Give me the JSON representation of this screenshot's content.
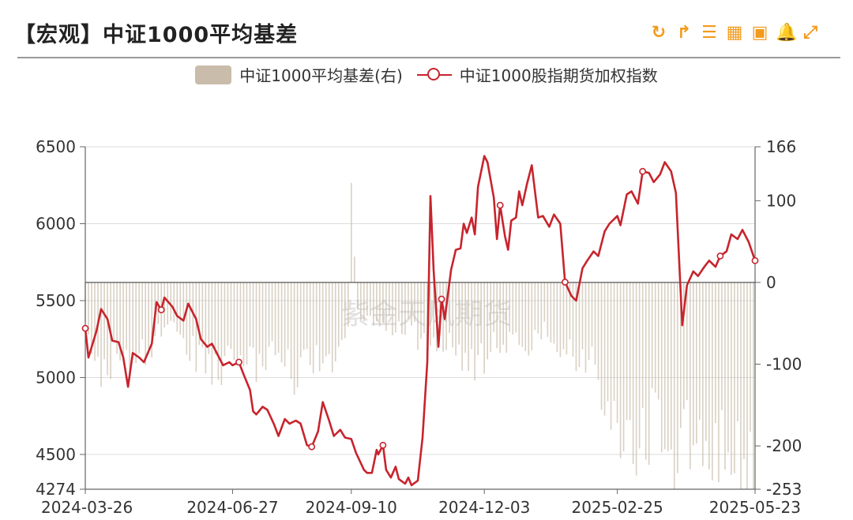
{
  "header": {
    "title": "【宏观】中证1000平均基差",
    "toolbar": [
      {
        "name": "refresh-icon",
        "glyph": "↻"
      },
      {
        "name": "share-icon",
        "glyph": "↱"
      },
      {
        "name": "list-icon",
        "glyph": "☰"
      },
      {
        "name": "table-icon",
        "glyph": "▦"
      },
      {
        "name": "image-icon",
        "glyph": "▣"
      },
      {
        "name": "bell-icon",
        "glyph": "🔔"
      },
      {
        "name": "fullscreen-icon",
        "glyph": "⤢"
      }
    ]
  },
  "watermark": "紫金天风期货",
  "colors": {
    "line": "#c7242d",
    "bar": "#c9bcaa",
    "accent": "#f29a1c"
  },
  "chart_data": {
    "type": "line+bar",
    "title": "【宏观】中证1000平均基差",
    "legend_position": "top-center",
    "grid": "horizontal",
    "x_range": [
      "2024-03-26",
      "2025-05-23"
    ],
    "x_ticks": [
      "2024-03-26",
      "2024-06-27",
      "2024-09-10",
      "2024-12-03",
      "2025-02-25",
      "2025-05-23"
    ],
    "y_left": {
      "ticks": [
        "6500",
        "6000",
        "5500",
        "5000",
        "4500",
        "4274"
      ],
      "range": [
        4274,
        6500
      ]
    },
    "y_right": {
      "ticks": [
        "166",
        "100",
        "0",
        "-100",
        "-200",
        "-253"
      ],
      "range": [
        -253,
        166
      ]
    },
    "series": [
      {
        "name": "中证1000平均基差(右)",
        "axis": "right",
        "kind": "bar",
        "anchors": [
          [
            "2024-03-26",
            -60
          ],
          [
            "2024-04-05",
            -135
          ],
          [
            "2024-04-15",
            -75
          ],
          [
            "2024-04-25",
            -120
          ],
          [
            "2024-05-05",
            -80
          ],
          [
            "2024-05-15",
            -60
          ],
          [
            "2024-05-25",
            -65
          ],
          [
            "2024-06-05",
            -95
          ],
          [
            "2024-06-15",
            -115
          ],
          [
            "2024-06-27",
            -90
          ],
          [
            "2024-07-10",
            -110
          ],
          [
            "2024-07-25",
            -80
          ],
          [
            "2024-08-05",
            -115
          ],
          [
            "2024-08-20",
            -90
          ],
          [
            "2024-09-01",
            -110
          ],
          [
            "2024-09-08",
            -50
          ],
          [
            "2024-09-10",
            166
          ],
          [
            "2024-09-13",
            -30
          ],
          [
            "2024-09-20",
            -55
          ],
          [
            "2024-10-01",
            -50
          ],
          [
            "2024-10-15",
            -60
          ],
          [
            "2024-10-28",
            -75
          ],
          [
            "2024-11-10",
            -70
          ],
          [
            "2024-11-20",
            -110
          ],
          [
            "2024-12-03",
            -95
          ],
          [
            "2024-12-15",
            -70
          ],
          [
            "2024-12-28",
            -80
          ],
          [
            "2025-01-10",
            -60
          ],
          [
            "2025-01-25",
            -85
          ],
          [
            "2025-02-10",
            -110
          ],
          [
            "2025-02-25",
            -170
          ],
          [
            "2025-03-10",
            -215
          ],
          [
            "2025-03-20",
            -175
          ],
          [
            "2025-04-01",
            -220
          ],
          [
            "2025-04-10",
            -185
          ],
          [
            "2025-04-20",
            -215
          ],
          [
            "2025-05-05",
            -195
          ],
          [
            "2025-05-15",
            -235
          ],
          [
            "2025-05-23",
            -240
          ]
        ]
      },
      {
        "name": "中证1000股指期货加权指数",
        "axis": "left",
        "kind": "line",
        "points": [
          [
            "2024-03-26",
            5320
          ],
          [
            "2024-03-28",
            5130
          ],
          [
            "2024-04-02",
            5300
          ],
          [
            "2024-04-05",
            5445
          ],
          [
            "2024-04-09",
            5380
          ],
          [
            "2024-04-12",
            5240
          ],
          [
            "2024-04-16",
            5230
          ],
          [
            "2024-04-19",
            5130
          ],
          [
            "2024-04-22",
            4940
          ],
          [
            "2024-04-25",
            5160
          ],
          [
            "2024-04-29",
            5130
          ],
          [
            "2024-05-02",
            5100
          ],
          [
            "2024-05-07",
            5220
          ],
          [
            "2024-05-10",
            5490
          ],
          [
            "2024-05-13",
            5440
          ],
          [
            "2024-05-15",
            5520
          ],
          [
            "2024-05-20",
            5460
          ],
          [
            "2024-05-23",
            5400
          ],
          [
            "2024-05-27",
            5370
          ],
          [
            "2024-05-30",
            5480
          ],
          [
            "2024-06-04",
            5380
          ],
          [
            "2024-06-07",
            5250
          ],
          [
            "2024-06-11",
            5200
          ],
          [
            "2024-06-14",
            5220
          ],
          [
            "2024-06-18",
            5140
          ],
          [
            "2024-06-21",
            5080
          ],
          [
            "2024-06-25",
            5100
          ],
          [
            "2024-06-27",
            5080
          ],
          [
            "2024-07-01",
            5100
          ],
          [
            "2024-07-04",
            5020
          ],
          [
            "2024-07-08",
            4920
          ],
          [
            "2024-07-10",
            4780
          ],
          [
            "2024-07-12",
            4760
          ],
          [
            "2024-07-16",
            4810
          ],
          [
            "2024-07-19",
            4790
          ],
          [
            "2024-07-23",
            4700
          ],
          [
            "2024-07-26",
            4620
          ],
          [
            "2024-07-30",
            4730
          ],
          [
            "2024-08-02",
            4700
          ],
          [
            "2024-08-06",
            4720
          ],
          [
            "2024-08-09",
            4700
          ],
          [
            "2024-08-13",
            4560
          ],
          [
            "2024-08-16",
            4550
          ],
          [
            "2024-08-20",
            4650
          ],
          [
            "2024-08-23",
            4840
          ],
          [
            "2024-08-27",
            4720
          ],
          [
            "2024-08-30",
            4620
          ],
          [
            "2024-09-03",
            4660
          ],
          [
            "2024-09-06",
            4610
          ],
          [
            "2024-09-10",
            4600
          ],
          [
            "2024-09-13",
            4510
          ],
          [
            "2024-09-18",
            4400
          ],
          [
            "2024-09-20",
            4380
          ],
          [
            "2024-09-23",
            4380
          ],
          [
            "2024-09-26",
            4530
          ],
          [
            "2024-09-27",
            4500
          ],
          [
            "2024-09-30",
            4560
          ],
          [
            "2024-10-02",
            4400
          ],
          [
            "2024-10-05",
            4350
          ],
          [
            "2024-10-08",
            4420
          ],
          [
            "2024-10-10",
            4340
          ],
          [
            "2024-10-14",
            4310
          ],
          [
            "2024-10-16",
            4350
          ],
          [
            "2024-10-18",
            4300
          ],
          [
            "2024-10-22",
            4330
          ],
          [
            "2024-10-25",
            4610
          ],
          [
            "2024-10-28",
            5100
          ],
          [
            "2024-10-30",
            6180
          ],
          [
            "2024-11-01",
            5700
          ],
          [
            "2024-11-04",
            5200
          ],
          [
            "2024-11-06",
            5510
          ],
          [
            "2024-11-08",
            5380
          ],
          [
            "2024-11-12",
            5700
          ],
          [
            "2024-11-15",
            5830
          ],
          [
            "2024-11-18",
            5840
          ],
          [
            "2024-11-20",
            6000
          ],
          [
            "2024-11-22",
            5940
          ],
          [
            "2024-11-25",
            6040
          ],
          [
            "2024-11-27",
            5930
          ],
          [
            "2024-11-29",
            6240
          ],
          [
            "2024-12-03",
            6440
          ],
          [
            "2024-12-05",
            6400
          ],
          [
            "2024-12-09",
            6170
          ],
          [
            "2024-12-11",
            5900
          ],
          [
            "2024-12-13",
            6120
          ],
          [
            "2024-12-16",
            5920
          ],
          [
            "2024-12-18",
            5830
          ],
          [
            "2024-12-20",
            6020
          ],
          [
            "2024-12-23",
            6040
          ],
          [
            "2024-12-25",
            6210
          ],
          [
            "2024-12-27",
            6120
          ],
          [
            "2024-12-30",
            6260
          ],
          [
            "2025-01-02",
            6380
          ],
          [
            "2025-01-06",
            6040
          ],
          [
            "2025-01-09",
            6050
          ],
          [
            "2025-01-13",
            5980
          ],
          [
            "2025-01-16",
            6060
          ],
          [
            "2025-01-20",
            6000
          ],
          [
            "2025-01-23",
            5620
          ],
          [
            "2025-01-27",
            5530
          ],
          [
            "2025-01-30",
            5500
          ],
          [
            "2025-02-03",
            5710
          ],
          [
            "2025-02-06",
            5760
          ],
          [
            "2025-02-10",
            5820
          ],
          [
            "2025-02-13",
            5790
          ],
          [
            "2025-02-17",
            5950
          ],
          [
            "2025-02-20",
            6000
          ],
          [
            "2025-02-25",
            6050
          ],
          [
            "2025-02-27",
            5990
          ],
          [
            "2025-03-03",
            6190
          ],
          [
            "2025-03-06",
            6210
          ],
          [
            "2025-03-10",
            6130
          ],
          [
            "2025-03-13",
            6340
          ],
          [
            "2025-03-17",
            6330
          ],
          [
            "2025-03-20",
            6270
          ],
          [
            "2025-03-24",
            6320
          ],
          [
            "2025-03-27",
            6400
          ],
          [
            "2025-03-31",
            6340
          ],
          [
            "2025-04-03",
            6200
          ],
          [
            "2025-04-07",
            5340
          ],
          [
            "2025-04-10",
            5600
          ],
          [
            "2025-04-14",
            5690
          ],
          [
            "2025-04-17",
            5660
          ],
          [
            "2025-04-21",
            5720
          ],
          [
            "2025-04-24",
            5760
          ],
          [
            "2025-04-28",
            5720
          ],
          [
            "2025-05-01",
            5790
          ],
          [
            "2025-05-05",
            5820
          ],
          [
            "2025-05-08",
            5930
          ],
          [
            "2025-05-12",
            5900
          ],
          [
            "2025-05-15",
            5960
          ],
          [
            "2025-05-19",
            5880
          ],
          [
            "2025-05-23",
            5760
          ]
        ]
      }
    ]
  }
}
